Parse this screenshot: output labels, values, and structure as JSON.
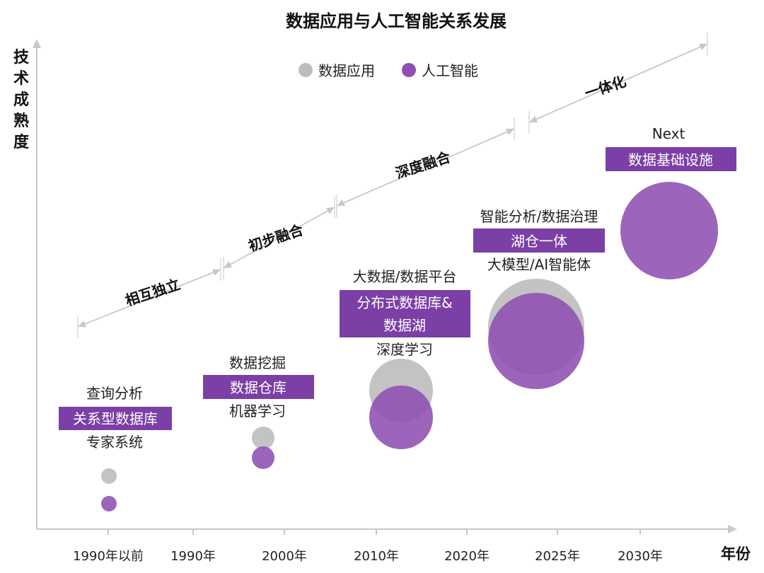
{
  "chart_data": {
    "type": "scatter",
    "title": "数据应用与人工智能关系发展",
    "ylabel": "技术成熟度",
    "xlabel": "年份",
    "x_ticks": [
      "1990年以前",
      "1990年",
      "2000年",
      "2010年",
      "2020年",
      "2025年",
      "2030年"
    ],
    "legend": [
      {
        "name": "数据应用",
        "color": "#BDBDBD"
      },
      {
        "name": "人工智能",
        "color": "#8E4FB0"
      }
    ],
    "legend_position": "top-center",
    "grid": false,
    "series": [
      {
        "name": "数据应用",
        "color": "#BDBDBD",
        "points": [
          {
            "x": "1990年以前",
            "size": 1
          },
          {
            "x": "2000年",
            "size": 1.5
          },
          {
            "x": "2010年",
            "size": 4
          },
          {
            "x": "2025年",
            "size": 6
          },
          {
            "x": "2030年",
            "size": null
          }
        ]
      },
      {
        "name": "人工智能",
        "color": "#8E4FB0",
        "points": [
          {
            "x": "1990年以前",
            "size": 1
          },
          {
            "x": "2000年",
            "size": 1.5
          },
          {
            "x": "2010年",
            "size": 4
          },
          {
            "x": "2025年",
            "size": 6
          },
          {
            "x": "2030年",
            "size": 7
          }
        ]
      }
    ],
    "phases": [
      "相互独立",
      "初步融合",
      "深度融合",
      "一体化"
    ],
    "eras": [
      {
        "top": "查询分析",
        "box": "关系型数据库",
        "bottom": "专家系统"
      },
      {
        "top": "数据挖掘",
        "box": "数据仓库",
        "bottom": "机器学习"
      },
      {
        "top": "大数据/数据平台",
        "box": "分布式数据库&",
        "box2": "数据湖",
        "bottom": "深度学习"
      },
      {
        "top": "智能分析/数据治理",
        "box": "湖仓一体",
        "bottom": "大模型/AI智能体"
      },
      {
        "top": "Next",
        "box": "数据基础设施",
        "bottom": ""
      }
    ]
  }
}
